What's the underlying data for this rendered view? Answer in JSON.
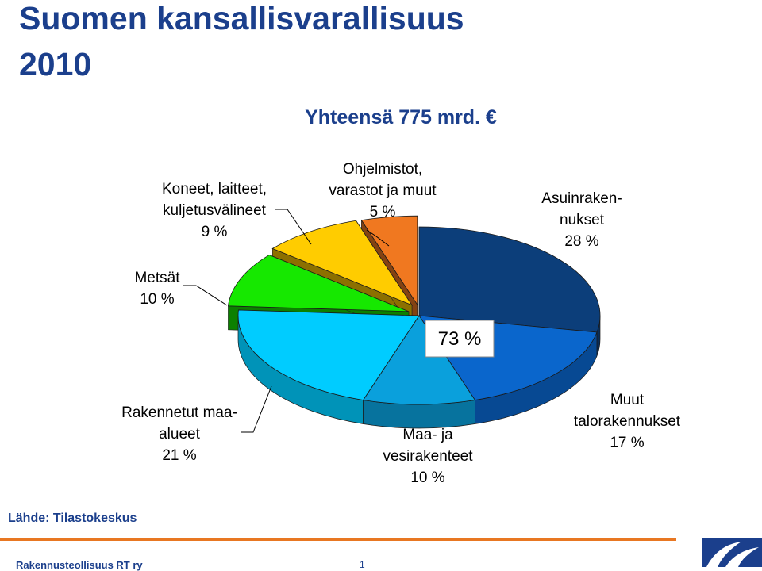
{
  "title": {
    "line1": "Suomen kansallisvarallisuus",
    "line2": "2010"
  },
  "source": "Lähde: Tilastokeskus",
  "footer": {
    "org": "Rakennusteollisuus RT ry",
    "page": "1"
  },
  "chart_data": {
    "type": "pie",
    "title": "Yhteensä 775 mrd. €",
    "unit": "%",
    "slices": [
      {
        "label": "Asuinraken-\nnukset",
        "value": 28,
        "display": "28 %",
        "color": "#0c3e7a"
      },
      {
        "label": "Muut\ntalorakennukset",
        "value": 17,
        "display": "17 %",
        "color": "#0a66cc"
      },
      {
        "label": "Maa- ja\nvesirakenteet",
        "value": 10,
        "display": "10 %",
        "color": "#0aa0dc"
      },
      {
        "label": "Rakennetut maa-\nalueet",
        "value": 21,
        "display": "21 %",
        "color": "#00ccff"
      },
      {
        "label": "Metsät",
        "value": 10,
        "display": "10 %",
        "color": "#16e800"
      },
      {
        "label": "Koneet, laitteet,\nkuljetusvälineet",
        "value": 9,
        "display": "9 %",
        "color": "#ffcc00"
      },
      {
        "label": "Ohjelmistot,\nvarastot ja muut",
        "value": 5,
        "display": "5 %",
        "color": "#f07820"
      }
    ],
    "annotation": {
      "text": "73 %"
    }
  },
  "colors": {
    "title": "#1b3f8c",
    "accent_rule": "#e87722"
  }
}
